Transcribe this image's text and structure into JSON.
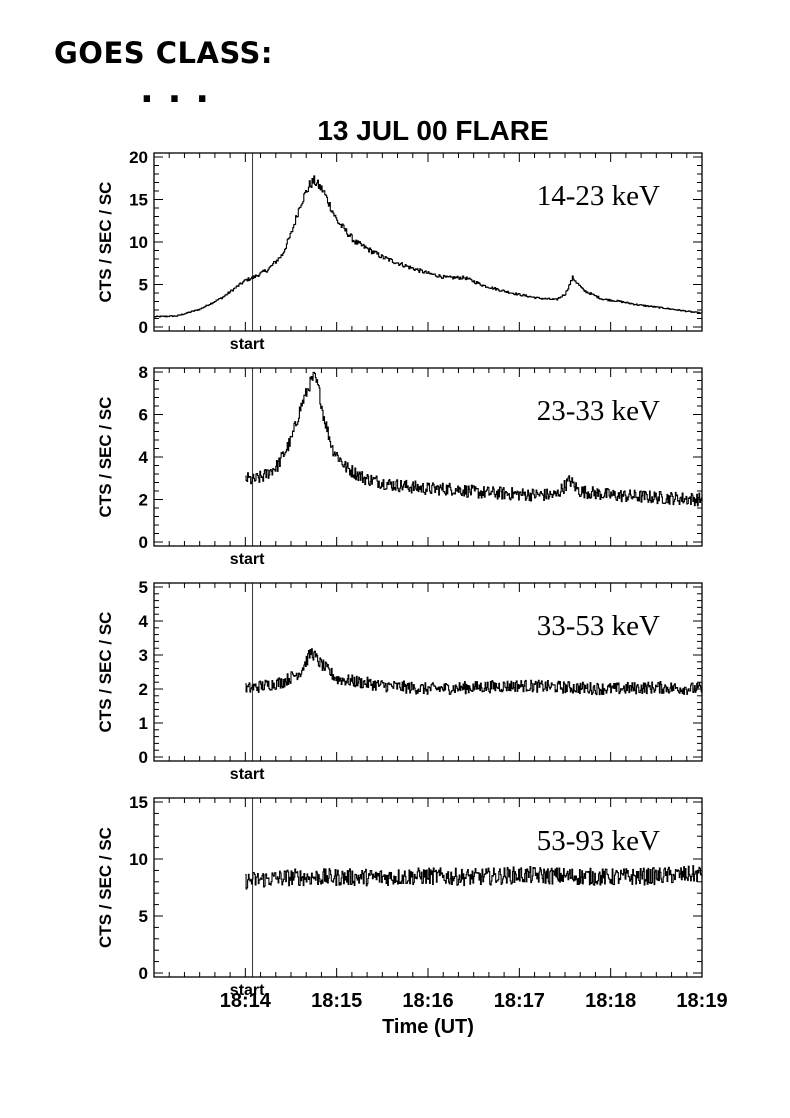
{
  "header": {
    "goes_label": "GOES CLASS:",
    "goes_value": "..."
  },
  "chart_data": {
    "type": "line",
    "title": "13 JUL 00 FLARE",
    "xlabel": "Time (UT)",
    "x_unit": "minutes after 18:00 UT",
    "xlim": [
      13.0,
      19.0
    ],
    "xticks": [
      {
        "value": 14,
        "label": "18:14"
      },
      {
        "value": 15,
        "label": "18:15"
      },
      {
        "value": 16,
        "label": "18:16"
      },
      {
        "value": 17,
        "label": "18:17"
      },
      {
        "value": 18,
        "label": "18:18"
      },
      {
        "value": 19,
        "label": "18:19"
      }
    ],
    "start_marker": {
      "x": 14.08,
      "label": "start"
    },
    "panels": [
      {
        "band": "14-23 keV",
        "ylabel": "CTS / SEC / SC",
        "ylim": [
          0,
          20
        ],
        "yticks": [
          0,
          5,
          10,
          15,
          20
        ],
        "x": [
          13.0,
          13.25,
          13.5,
          13.75,
          14.0,
          14.08,
          14.25,
          14.4,
          14.5,
          14.6,
          14.7,
          14.75,
          14.85,
          15.0,
          15.2,
          15.5,
          15.8,
          16.0,
          16.2,
          16.4,
          16.6,
          16.8,
          17.0,
          17.2,
          17.4,
          17.5,
          17.58,
          17.7,
          17.9,
          18.1,
          18.3,
          18.6,
          18.8,
          19.0
        ],
        "values": [
          1.2,
          1.3,
          2.1,
          3.5,
          5.5,
          5.8,
          6.8,
          8.5,
          11.0,
          14.5,
          16.7,
          17.2,
          16.0,
          12.5,
          10.0,
          8.2,
          7.0,
          6.3,
          5.8,
          5.8,
          4.9,
          4.3,
          3.8,
          3.4,
          3.2,
          3.9,
          5.8,
          4.3,
          3.3,
          3.0,
          2.6,
          2.2,
          1.9,
          1.6
        ]
      },
      {
        "band": "23-33 keV",
        "ylabel": "CTS / SEC / SC",
        "ylim": [
          0,
          8
        ],
        "yticks": [
          0,
          2,
          4,
          6,
          8
        ],
        "x": [
          14.0,
          14.08,
          14.2,
          14.35,
          14.5,
          14.6,
          14.7,
          14.75,
          14.8,
          14.85,
          14.95,
          15.1,
          15.3,
          15.6,
          16.0,
          16.3,
          16.5,
          17.0,
          17.4,
          17.55,
          17.65,
          18.0,
          18.5,
          19.0
        ],
        "values": [
          3.0,
          2.9,
          3.1,
          3.6,
          4.8,
          6.3,
          7.4,
          7.8,
          7.2,
          6.0,
          4.4,
          3.5,
          3.0,
          2.7,
          2.5,
          2.5,
          2.35,
          2.25,
          2.2,
          2.9,
          2.4,
          2.2,
          2.1,
          2.0
        ]
      },
      {
        "band": "33-53 keV",
        "ylabel": "CTS / SEC / SC",
        "ylim": [
          0,
          5
        ],
        "yticks": [
          0,
          1,
          2,
          3,
          4,
          5
        ],
        "x": [
          14.0,
          14.2,
          14.4,
          14.6,
          14.72,
          14.8,
          15.0,
          15.5,
          16.0,
          16.5,
          17.0,
          17.5,
          18.0,
          18.5,
          19.0
        ],
        "values": [
          2.0,
          2.1,
          2.2,
          2.5,
          3.1,
          2.8,
          2.3,
          2.1,
          2.0,
          2.05,
          2.1,
          2.05,
          2.0,
          2.05,
          2.0
        ]
      },
      {
        "band": "53-93 keV",
        "ylabel": "CTS / SEC / SC",
        "ylim": [
          0,
          15
        ],
        "yticks": [
          0,
          5,
          10,
          15
        ],
        "x": [
          14.0,
          14.5,
          15.0,
          15.5,
          16.0,
          16.5,
          17.0,
          17.5,
          18.0,
          18.5,
          19.0
        ],
        "values": [
          8.1,
          8.4,
          8.4,
          8.4,
          8.5,
          8.4,
          8.6,
          8.5,
          8.4,
          8.5,
          8.7
        ]
      }
    ]
  }
}
